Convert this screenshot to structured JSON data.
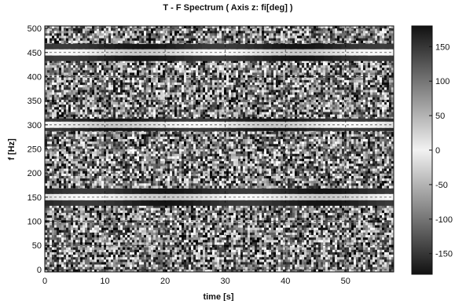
{
  "chart_data": {
    "type": "heatmap",
    "title": "T - F Spectrum ( Axis z: fi[deg] )",
    "xlabel": "time [s]",
    "ylabel": "f [Hz]",
    "xlim": [
      0,
      58
    ],
    "ylim": [
      -5,
      505
    ],
    "x_ticks": [
      0,
      10,
      20,
      30,
      40,
      50
    ],
    "y_ticks": [
      0,
      50,
      100,
      150,
      200,
      250,
      300,
      350,
      400,
      450,
      500
    ],
    "colorbar": {
      "label": "",
      "range": [
        -180,
        180
      ],
      "ticks": [
        150,
        100,
        50,
        0,
        -50,
        -100,
        -150
      ],
      "colormap": "gray"
    },
    "bands": [
      {
        "f": 150,
        "description_visible": "strong horizontal phase band"
      },
      {
        "f": 450,
        "description_visible": "strong horizontal phase band"
      },
      {
        "f": 300,
        "description_visible": "weaker horizontal phase band"
      }
    ],
    "grid": true,
    "grid_style": "dashed"
  }
}
